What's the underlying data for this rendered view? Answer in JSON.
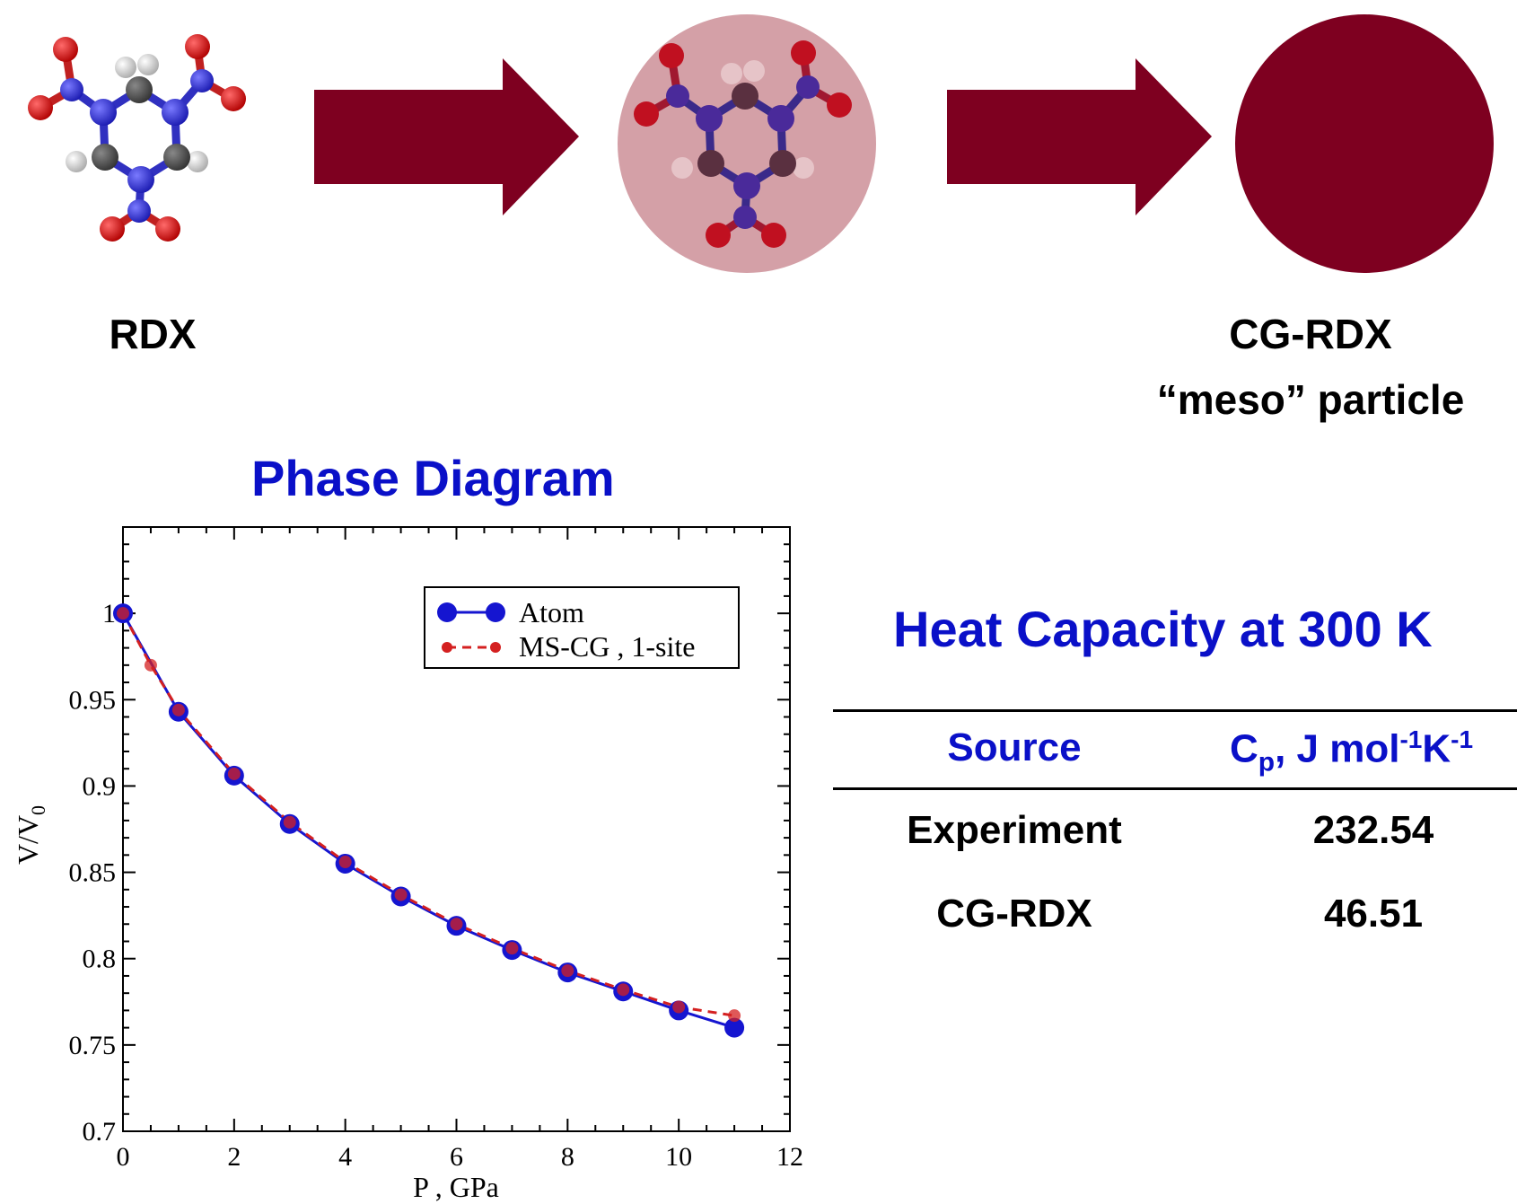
{
  "top_row": {
    "left_label": "RDX",
    "right_label_line1": "CG-RDX",
    "right_label_line2": "“meso” particle"
  },
  "colors": {
    "arrow": "#7e0020",
    "cg_particle": "#7e0020",
    "halo": "#d4a0a7",
    "title_blue": "#0a10c8",
    "atom_series": "#1515d0",
    "mscg_series": "#d42020"
  },
  "icons": [
    "rdx-molecule-icon",
    "coarse-grained-molecule-icon",
    "cg-particle-icon",
    "right-arrow-icon"
  ],
  "phase_title": "Phase Diagram",
  "heat_title": "Heat Capacity at 300 K",
  "heat_table": {
    "headers": {
      "source": "Source",
      "cp_main": "C",
      "cp_sub": "p",
      "cp_unit_a": ", J mol",
      "cp_sup1": "-1",
      "cp_unit_b": "K",
      "cp_sup2": "-1"
    },
    "rows": [
      {
        "source": "Experiment",
        "value": "232.54"
      },
      {
        "source": "CG-RDX",
        "value": "46.51"
      }
    ]
  },
  "chart_data": {
    "type": "line",
    "xlabel": "P , GPa",
    "ylabel_main": "V/V",
    "ylabel_sub": "0",
    "xlim": [
      0,
      12
    ],
    "ylim": [
      0.7,
      1.05
    ],
    "x_ticks": [
      "0",
      "2",
      "4",
      "6",
      "8",
      "10",
      "12"
    ],
    "y_ticks": [
      "0.7",
      "0.75",
      "0.8",
      "0.85",
      "0.9",
      "0.95",
      "1"
    ],
    "y_tick_values": [
      0.7,
      0.75,
      0.8,
      0.85,
      0.9,
      0.95,
      1.0
    ],
    "x_tick_values": [
      0,
      2,
      4,
      6,
      8,
      10,
      12
    ],
    "legend_position": "top-right",
    "series": [
      {
        "name": "Atom",
        "style": "solid",
        "x": [
          0,
          1,
          2,
          3,
          4,
          5,
          6,
          7,
          8,
          9,
          10,
          11
        ],
        "y": [
          1.0,
          0.943,
          0.906,
          0.878,
          0.855,
          0.836,
          0.819,
          0.805,
          0.792,
          0.781,
          0.77,
          0.76
        ]
      },
      {
        "name": "MS-CG , 1-site",
        "style": "dashed",
        "x": [
          0,
          0.5,
          1,
          2,
          3,
          4,
          5,
          6,
          7,
          8,
          9,
          10,
          11
        ],
        "y": [
          1.0,
          0.97,
          0.944,
          0.907,
          0.879,
          0.856,
          0.837,
          0.82,
          0.806,
          0.793,
          0.782,
          0.772,
          0.767
        ]
      }
    ]
  }
}
